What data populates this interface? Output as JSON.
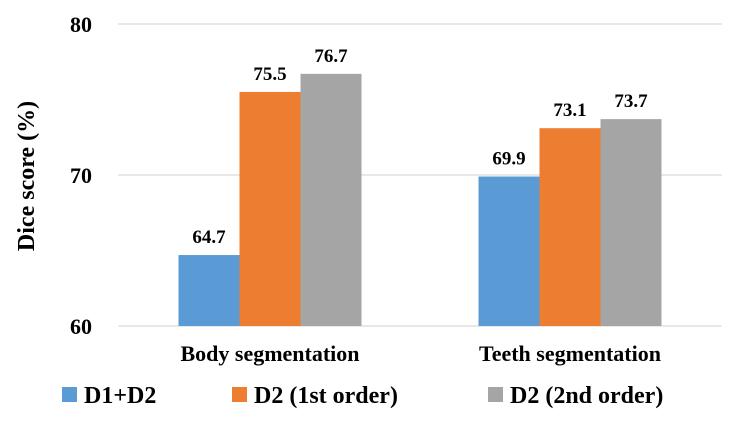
{
  "chart_data": {
    "type": "bar",
    "title": "",
    "xlabel": "",
    "ylabel": "Dice score  (%)",
    "categories": [
      "Body segmentation",
      "Teeth segmentation"
    ],
    "series": [
      {
        "name": "D1+D2",
        "values": [
          64.7,
          69.9
        ],
        "color": "#5b9bd5"
      },
      {
        "name": "D2 (1st order)",
        "values": [
          75.5,
          73.1
        ],
        "color": "#ed7d31"
      },
      {
        "name": "D2 (2nd order)",
        "values": [
          76.7,
          73.7
        ],
        "color": "#a5a5a5"
      }
    ],
    "ylim": [
      60,
      80
    ],
    "yticks": [
      60,
      70,
      80
    ],
    "grid": true,
    "legend_position": "bottom",
    "gridline_color": "#d9d9d9"
  }
}
